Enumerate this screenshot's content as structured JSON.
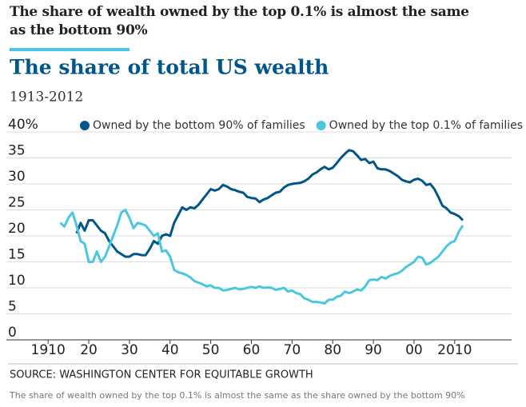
{
  "headline": "The share of wealth owned by the top 0.1% is almost the same as the bottom 90%",
  "chart_data": {
    "type": "line",
    "title": "The share of total US wealth",
    "subtitle": "1913-2012",
    "source": "SOURCE: WASHINGTON CENTER FOR EQUITABLE GROWTH",
    "caption": "The share of wealth owned by the top 0.1% is almost the same as the share owned by the bottom 90%",
    "x": [
      1913,
      1914,
      1915,
      1916,
      1917,
      1918,
      1919,
      1920,
      1921,
      1922,
      1923,
      1924,
      1925,
      1926,
      1927,
      1928,
      1929,
      1930,
      1931,
      1932,
      1933,
      1934,
      1935,
      1936,
      1937,
      1938,
      1939,
      1940,
      1941,
      1942,
      1943,
      1944,
      1945,
      1946,
      1947,
      1948,
      1949,
      1950,
      1951,
      1952,
      1953,
      1954,
      1955,
      1956,
      1957,
      1958,
      1959,
      1960,
      1961,
      1962,
      1963,
      1964,
      1965,
      1966,
      1967,
      1968,
      1969,
      1970,
      1971,
      1972,
      1973,
      1974,
      1975,
      1976,
      1977,
      1978,
      1979,
      1980,
      1981,
      1982,
      1983,
      1984,
      1985,
      1986,
      1987,
      1988,
      1989,
      1990,
      1991,
      1992,
      1993,
      1994,
      1995,
      1996,
      1997,
      1998,
      1999,
      2000,
      2001,
      2002,
      2003,
      2004,
      2005,
      2006,
      2007,
      2008,
      2009,
      2010,
      2011,
      2012
    ],
    "series": [
      {
        "name": "Owned by the bottom 90% of families",
        "color": "#005689",
        "values": [
          null,
          null,
          null,
          null,
          20.5,
          22.5,
          21,
          23,
          23,
          22,
          21,
          20.5,
          19,
          18,
          17,
          16.5,
          16,
          16,
          16.5,
          16.5,
          16.3,
          16.3,
          17.5,
          19,
          18.5,
          20,
          20.3,
          20,
          22.5,
          24,
          25.5,
          25,
          25.5,
          25.3,
          26,
          27,
          28,
          29,
          28.7,
          29,
          29.8,
          29.5,
          29,
          28.8,
          28.5,
          28.3,
          27.5,
          27.3,
          27.2,
          26.5,
          27,
          27.3,
          27.8,
          28.3,
          28.5,
          29.3,
          29.8,
          30,
          30.1,
          30.2,
          30.5,
          31,
          31.8,
          32.2,
          32.8,
          33.3,
          32.8,
          33.1,
          34,
          35,
          35.8,
          36.5,
          36.3,
          35.5,
          34.6,
          34.8,
          34,
          34.3,
          33,
          32.8,
          32.8,
          32.5,
          32,
          31.5,
          30.8,
          30.5,
          30.3,
          30.8,
          31,
          30.6,
          29.8,
          30,
          29,
          27.5,
          25.8,
          25.3,
          24.5,
          24.2,
          23.8,
          23
        ]
      },
      {
        "name": "Owned by the top 0.1% of families",
        "color": "#4bc6df",
        "values": [
          22.5,
          21.8,
          23.5,
          24.5,
          22,
          19,
          18.5,
          15,
          15,
          17,
          15,
          16,
          18,
          20,
          22,
          24.5,
          25,
          23.5,
          21.5,
          22.5,
          22.3,
          22,
          21,
          20,
          20.5,
          17,
          17.2,
          16,
          13.5,
          13,
          12.8,
          12.5,
          12,
          11.3,
          11,
          10.7,
          10.3,
          10.5,
          10,
          10,
          9.5,
          9.6,
          9.8,
          10,
          9.7,
          9.8,
          10,
          10.2,
          10,
          10.3,
          10,
          10.1,
          10,
          9.6,
          9.8,
          10,
          9.3,
          9.5,
          9,
          8.8,
          8,
          7.7,
          7.3,
          7.3,
          7.2,
          7,
          7.7,
          7.7,
          8.3,
          8.5,
          9.3,
          9,
          9.3,
          9.7,
          9.5,
          10.3,
          11.5,
          11.6,
          11.5,
          12.1,
          11.8,
          12.3,
          12.6,
          12.8,
          13.3,
          14,
          14.5,
          15,
          16,
          15.8,
          14.5,
          14.8,
          15.4,
          16,
          17,
          18,
          18.7,
          19,
          20.8,
          22
        ]
      }
    ],
    "xlim": [
      1908,
      2024
    ],
    "xticks": [
      {
        "value": 1910,
        "label": "1910"
      },
      {
        "value": 1920,
        "label": "20"
      },
      {
        "value": 1930,
        "label": "30"
      },
      {
        "value": 1940,
        "label": "40"
      },
      {
        "value": 1950,
        "label": "50"
      },
      {
        "value": 1960,
        "label": "60"
      },
      {
        "value": 1970,
        "label": "70"
      },
      {
        "value": 1980,
        "label": "80"
      },
      {
        "value": 1990,
        "label": "90"
      },
      {
        "value": 2000,
        "label": "00"
      },
      {
        "value": 2010,
        "label": "2010"
      }
    ],
    "ylim": [
      0,
      40
    ],
    "yticks": [
      0,
      5,
      10,
      15,
      20,
      25,
      30,
      35,
      {
        "value": 40,
        "label": "40%"
      }
    ],
    "grid": true
  }
}
